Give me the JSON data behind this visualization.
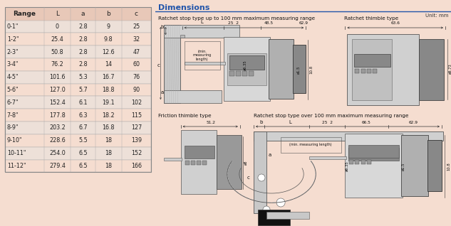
{
  "bg_color": "#f5ddd0",
  "right_bg_color": "#ffffff",
  "table_header": [
    "Range",
    "L",
    "a",
    "b",
    "c"
  ],
  "table_rows": [
    [
      "0-1\"",
      "0",
      "2.8",
      "9",
      "25"
    ],
    [
      "1-2\"",
      "25.4",
      "2.8",
      "9.8",
      "32"
    ],
    [
      "2-3\"",
      "50.8",
      "2.8",
      "12.6",
      "47"
    ],
    [
      "3-4\"",
      "76.2",
      "2.8",
      "14",
      "60"
    ],
    [
      "4-5\"",
      "101.6",
      "5.3",
      "16.7",
      "76"
    ],
    [
      "5-6\"",
      "127.0",
      "5.7",
      "18.8",
      "90"
    ],
    [
      "6-7\"",
      "152.4",
      "6.1",
      "19.1",
      "102"
    ],
    [
      "7-8\"",
      "177.8",
      "6.3",
      "18.2",
      "115"
    ],
    [
      "8-9\"",
      "203.2",
      "6.7",
      "16.8",
      "127"
    ],
    [
      "9-10\"",
      "228.6",
      "5.5",
      "18",
      "139"
    ],
    [
      "10-11\"",
      "254.0",
      "6.5",
      "18",
      "152"
    ],
    [
      "11-12\"",
      "279.4",
      "6.5",
      "18",
      "166"
    ]
  ],
  "header_bg": "#e8c8b8",
  "row_alt_bg": "#ede0d8",
  "row_normal_bg": "#f5ddd0",
  "dimensions_title": "Dimensions",
  "unit_text": "Unit: mm",
  "ratchet_100_title": "Ratchet stop type up to 100 mm maximum measuring range",
  "ratchet_thimble_title": "Ratchet thimble type",
  "friction_title": "Friction thimble type",
  "ratchet_over100_title": "Ratchet stop type over 100 mm maximum measuring range",
  "divider_color": "#c8a090",
  "line_color": "#2255aa",
  "text_color_dark": "#111111",
  "text_color_mid": "#333333"
}
